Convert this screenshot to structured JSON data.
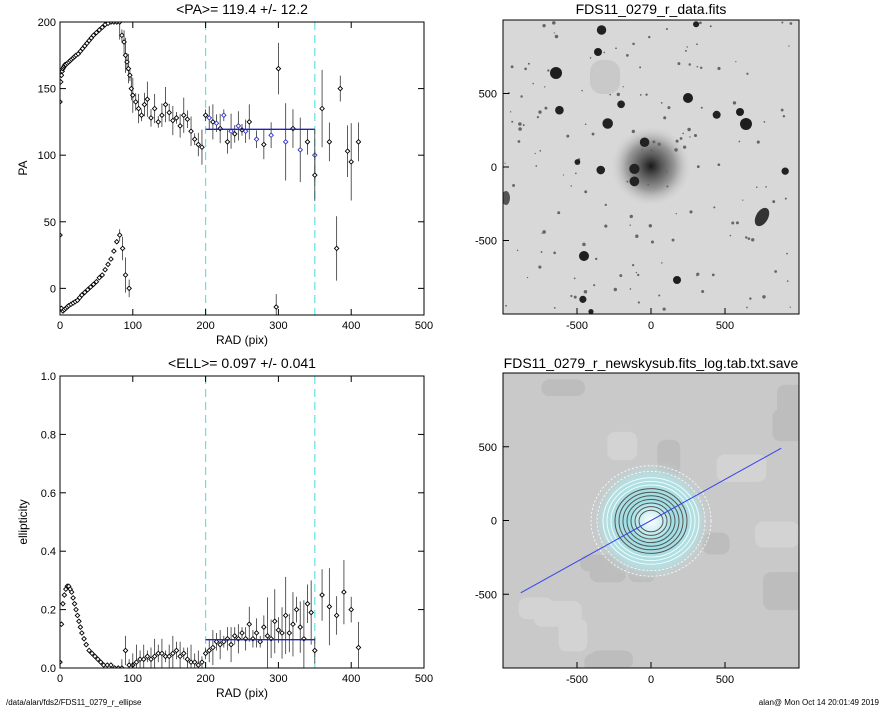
{
  "footer": {
    "path": "/data/alan/fds2/FDS11_0279_r_ellipse",
    "stamp": "alan@  Mon Oct 14 20:01:49 2019"
  },
  "chart_data": [
    {
      "type": "scatter",
      "title": "<PA>= 119.4 +/-  12.2",
      "xlabel": "RAD (pix)",
      "ylabel": "PA",
      "xlim": [
        0,
        500
      ],
      "ylim": [
        -20,
        200
      ],
      "xticks": [
        0,
        100,
        200,
        300,
        400,
        500
      ],
      "yticks": [
        0,
        50,
        100,
        150,
        200
      ],
      "colors": {
        "points": "#000000",
        "highlight": "#3333cc",
        "limits": "#66e0e0",
        "mean": "#2222bb"
      },
      "limit_lines_x": [
        200,
        350
      ],
      "mean_line": {
        "x": [
          200,
          350
        ],
        "y": 119.4
      },
      "series": [
        {
          "x": [
            0,
            1,
            2,
            3,
            4,
            5,
            6,
            7,
            8,
            10,
            12,
            14,
            16,
            18,
            20,
            22,
            25,
            28,
            31,
            34,
            37,
            40,
            43,
            46,
            50,
            54,
            58,
            62,
            66,
            70,
            74,
            78,
            82
          ],
          "y": [
            140,
            155,
            160,
            163,
            165,
            166,
            167,
            168,
            168,
            169,
            170,
            171,
            172,
            173,
            174,
            175,
            176,
            178,
            180,
            182,
            184,
            186,
            188,
            190,
            192,
            194,
            196,
            198,
            199,
            200,
            200,
            200,
            200
          ]
        },
        {
          "x": [
            0,
            2,
            4,
            6,
            8,
            10,
            12,
            15,
            18,
            21,
            24,
            27,
            30,
            34,
            38,
            42,
            46,
            50,
            54,
            58,
            62,
            66,
            70,
            74,
            78,
            82,
            86,
            90,
            95
          ],
          "y": [
            40,
            -15,
            -17,
            -16,
            -15,
            -14,
            -13,
            -12,
            -11,
            -10,
            -9,
            -7,
            -5,
            -3,
            -1,
            1,
            3,
            5,
            8,
            10,
            14,
            18,
            22,
            28,
            35,
            40,
            30,
            10,
            0
          ]
        },
        {
          "x": [
            85,
            88,
            90,
            92,
            94,
            96,
            98,
            100,
            104,
            108,
            112,
            116,
            120,
            125,
            130,
            135,
            140,
            145,
            150,
            155,
            160,
            165,
            170,
            175,
            180,
            185,
            190,
            195
          ],
          "y": [
            190,
            185,
            175,
            170,
            165,
            160,
            150,
            145,
            140,
            135,
            130,
            138,
            142,
            128,
            135,
            125,
            130,
            138,
            132,
            126,
            128,
            122,
            130,
            127,
            118,
            112,
            108,
            106
          ]
        },
        {
          "x": [
            200,
            205,
            210,
            215,
            220,
            225,
            230,
            235,
            240,
            245,
            250,
            255,
            260,
            270,
            280,
            290,
            300,
            310,
            320,
            330,
            340,
            350
          ],
          "y": [
            130,
            128,
            125,
            124,
            120,
            130,
            110,
            118,
            116,
            122,
            119,
            118,
            125,
            112,
            108,
            115,
            165,
            110,
            120,
            104,
            110,
            100
          ]
        },
        {
          "x": [
            297,
            350,
            360,
            370,
            380,
            385,
            395,
            400,
            410
          ],
          "y": [
            -14,
            85,
            135,
            110,
            30,
            150,
            103,
            95,
            110
          ]
        }
      ]
    },
    {
      "type": "heatmap",
      "title": "FDS11_0279_r_data.fits",
      "xlim": [
        -1000,
        1000
      ],
      "ylim": [
        -1000,
        1000
      ],
      "xticks": [
        -500,
        0,
        500
      ],
      "yticks": [
        -500,
        0,
        500
      ],
      "colormap": "inverted grayscale"
    },
    {
      "type": "scatter",
      "title": "<ELL>= 0.097 +/-  0.041",
      "xlabel": "RAD (pix)",
      "ylabel": "ellipticity",
      "xlim": [
        0,
        500
      ],
      "ylim": [
        0,
        1
      ],
      "xticks": [
        0,
        100,
        200,
        300,
        400,
        500
      ],
      "yticks": [
        0.0,
        0.2,
        0.4,
        0.6,
        0.8,
        1.0
      ],
      "colors": {
        "points": "#000000",
        "limits": "#66e0e0",
        "mean": "#2222bb"
      },
      "limit_lines_x": [
        200,
        350
      ],
      "mean_line": {
        "x": [
          200,
          350
        ],
        "y": 0.097
      },
      "series": [
        {
          "x": [
            0,
            2,
            4,
            6,
            8,
            10,
            12,
            14,
            16,
            18,
            20,
            22,
            24,
            26,
            28,
            30,
            33,
            36,
            40,
            44,
            48,
            52,
            56,
            60,
            65,
            70,
            75,
            80,
            85,
            90,
            95,
            100,
            105,
            110,
            115,
            120,
            125,
            130,
            135,
            140,
            145,
            150,
            155,
            160,
            165,
            170,
            175,
            180,
            185,
            190,
            195
          ],
          "y": [
            0.02,
            0.15,
            0.22,
            0.25,
            0.27,
            0.28,
            0.28,
            0.27,
            0.26,
            0.24,
            0.22,
            0.2,
            0.18,
            0.16,
            0.14,
            0.12,
            0.1,
            0.08,
            0.06,
            0.05,
            0.04,
            0.03,
            0.02,
            0.01,
            0.01,
            0.01,
            0.0,
            0.0,
            0.0,
            0.06,
            0.01,
            0.01,
            0.02,
            0.03,
            0.03,
            0.04,
            0.03,
            0.04,
            0.05,
            0.05,
            0.04,
            0.04,
            0.05,
            0.06,
            0.04,
            0.05,
            0.03,
            0.02,
            0.02,
            0.01,
            0.02
          ]
        },
        {
          "x": [
            200,
            205,
            210,
            215,
            220,
            225,
            230,
            235,
            240,
            245,
            250,
            255,
            260,
            265,
            270,
            275,
            280,
            285,
            290,
            295,
            300,
            305,
            310,
            315,
            320,
            325,
            330,
            335,
            340,
            345,
            350,
            360,
            370,
            380,
            390,
            400,
            410
          ],
          "y": [
            0.05,
            0.06,
            0.07,
            0.09,
            0.08,
            0.09,
            0.1,
            0.08,
            0.11,
            0.1,
            0.12,
            0.1,
            0.15,
            0.1,
            0.12,
            0.09,
            0.14,
            0.11,
            0.1,
            0.16,
            0.13,
            0.12,
            0.18,
            0.12,
            0.15,
            0.2,
            0.14,
            0.1,
            0.22,
            0.19,
            0.06,
            0.25,
            0.21,
            0.18,
            0.26,
            0.2,
            0.07
          ]
        }
      ]
    },
    {
      "type": "heatmap",
      "title": "FDS11_0279_r_newskysub.fits_log.tab.txt.save",
      "xlim": [
        -1000,
        1000
      ],
      "ylim": [
        -1000,
        1000
      ],
      "xticks": [
        -500,
        0,
        500
      ],
      "yticks": [
        -500,
        0,
        500
      ],
      "colormap": "grayscale with cyan/white isophote overlay",
      "pa_line": {
        "x": [
          -880,
          880
        ],
        "y": [
          -490,
          490
        ],
        "color": "#3344ee"
      }
    }
  ]
}
